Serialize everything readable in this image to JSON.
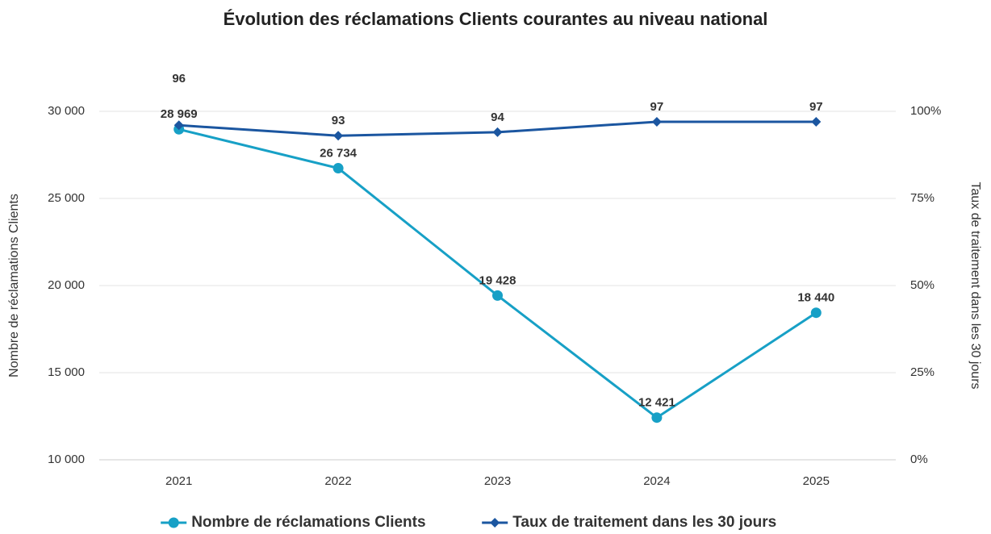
{
  "chart_data": {
    "type": "line",
    "title": "Évolution des réclamations Clients courantes au niveau national",
    "categories": [
      "2021",
      "2022",
      "2023",
      "2024",
      "2025"
    ],
    "series": [
      {
        "name": "Nombre de réclamations Clients",
        "color": "#17a0c6",
        "marker": "circle",
        "values": [
          28969,
          26734,
          19428,
          12421,
          18440
        ],
        "value_labels": [
          "28 969",
          "26 734",
          "19 428",
          "12 421",
          "18 440"
        ]
      },
      {
        "name": "Taux de traitement dans les 30 jours",
        "color": "#1b56a0",
        "marker": "diamond",
        "axis": "y2",
        "values": [
          96,
          93,
          94,
          97,
          97
        ]
      }
    ],
    "ylabel": "Nombre de réclamations Clients",
    "y2label": "Taux de traitement dans les 30 jours",
    "ylim": [
      10000,
      30000
    ],
    "yticks": [
      {
        "value": 10000,
        "label": "10 000"
      },
      {
        "value": 15000,
        "label": "15 000"
      },
      {
        "value": 20000,
        "label": "20 000"
      },
      {
        "value": 25000,
        "label": "25 000"
      },
      {
        "value": 30000,
        "label": "30 000"
      }
    ],
    "y2lim": [
      0,
      100
    ],
    "y2ticks": [
      {
        "value": 0,
        "label": "0%"
      },
      {
        "value": 25,
        "label": "25%"
      },
      {
        "value": 50,
        "label": "50%"
      },
      {
        "value": 75,
        "label": "75%"
      },
      {
        "value": 100,
        "label": "100%"
      }
    ],
    "grid": true,
    "legend": "bottom"
  }
}
